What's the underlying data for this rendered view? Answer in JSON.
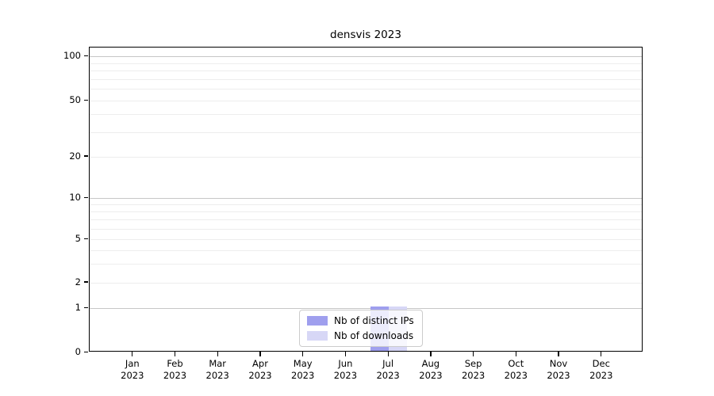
{
  "title": "densvis 2023",
  "colors": {
    "bar_distinct_ips": "#9f9fee",
    "bar_downloads": "#d7d7f6",
    "grid_major": "#c6c6c6",
    "grid_minor": "#ededed",
    "axis": "#000000",
    "legend_border": "#cccccc"
  },
  "chart_data": {
    "type": "bar",
    "title": "densvis 2023",
    "categories": [
      "Jan 2023",
      "Feb 2023",
      "Mar 2023",
      "Apr 2023",
      "May 2023",
      "Jun 2023",
      "Jul 2023",
      "Aug 2023",
      "Sep 2023",
      "Oct 2023",
      "Nov 2023",
      "Dec 2023"
    ],
    "series": [
      {
        "name": "Nb of distinct IPs",
        "color": "#9f9fee",
        "values": [
          0,
          0,
          0,
          0,
          0,
          0,
          1,
          0,
          0,
          0,
          0,
          0
        ]
      },
      {
        "name": "Nb of downloads",
        "color": "#d7d7f6",
        "values": [
          0,
          0,
          0,
          0,
          0,
          0,
          1,
          0,
          0,
          0,
          0,
          0
        ]
      }
    ],
    "yticks": [
      0,
      1,
      2,
      5,
      10,
      20,
      50,
      100
    ],
    "ylim": [
      0,
      110
    ],
    "xlabel": "",
    "ylabel": "",
    "y_scale": "symlog",
    "grid": "horizontal",
    "legend_position": "lower center"
  }
}
